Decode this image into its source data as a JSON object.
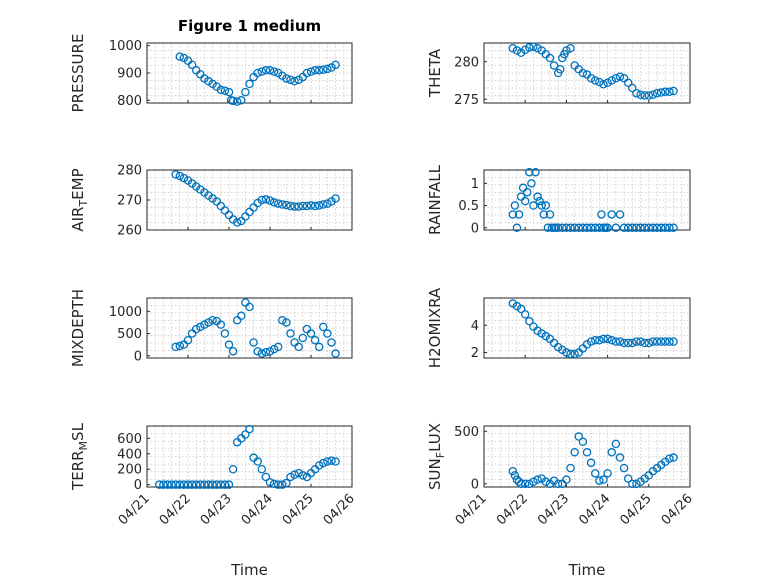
{
  "figure": {
    "title": "Figure 1 medium"
  },
  "colors": {
    "marker": "#0072BD",
    "axis": "#262626",
    "grid": "#c8c8c8"
  },
  "chart_data": [
    {
      "id": "pressure",
      "type": "scatter",
      "title": "Figure 1 medium",
      "ylabel_parts": [
        "PRESSURE"
      ],
      "xlabel": "",
      "xlim": [
        0,
        5
      ],
      "ylim": [
        790,
        1010
      ],
      "yticks": [
        800,
        900,
        1000
      ],
      "yticklabels": [
        "800",
        "900",
        "1000"
      ],
      "xticks": [
        0,
        1,
        2,
        3,
        4,
        5
      ],
      "xticklabels": [],
      "x": [
        0.8,
        0.9,
        1.0,
        1.1,
        1.2,
        1.3,
        1.4,
        1.5,
        1.6,
        1.7,
        1.8,
        1.9,
        2.0,
        2.05,
        2.1,
        2.2,
        2.3,
        2.4,
        2.5,
        2.6,
        2.7,
        2.8,
        2.9,
        3.0,
        3.1,
        3.2,
        3.3,
        3.4,
        3.5,
        3.6,
        3.7,
        3.8,
        3.9,
        4.0,
        4.1,
        4.2,
        4.3,
        4.4,
        4.5,
        4.6
      ],
      "y": [
        960,
        955,
        945,
        930,
        910,
        895,
        880,
        870,
        860,
        850,
        838,
        835,
        830,
        800,
        798,
        795,
        800,
        830,
        860,
        885,
        900,
        905,
        910,
        910,
        905,
        900,
        890,
        880,
        875,
        870,
        875,
        885,
        900,
        905,
        910,
        910,
        912,
        915,
        920,
        930
      ]
    },
    {
      "id": "theta",
      "type": "scatter",
      "ylabel_parts": [
        "THETA"
      ],
      "xlabel": "",
      "xlim": [
        0,
        5
      ],
      "ylim": [
        274.5,
        282.5
      ],
      "yticks": [
        275,
        280
      ],
      "yticklabels": [
        "275",
        "280"
      ],
      "xticks": [
        0,
        1,
        2,
        3,
        4,
        5
      ],
      "xticklabels": [],
      "x": [
        0.7,
        0.8,
        0.9,
        1.0,
        1.1,
        1.2,
        1.3,
        1.4,
        1.5,
        1.6,
        1.7,
        1.8,
        1.85,
        1.9,
        1.95,
        2.0,
        2.1,
        2.2,
        2.3,
        2.4,
        2.5,
        2.6,
        2.7,
        2.8,
        2.9,
        3.0,
        3.1,
        3.2,
        3.3,
        3.4,
        3.5,
        3.6,
        3.7,
        3.8,
        3.9,
        4.0,
        4.1,
        4.2,
        4.3,
        4.4,
        4.5,
        4.6
      ],
      "y": [
        281.8,
        281.5,
        281.2,
        281.6,
        281.9,
        282.0,
        281.8,
        281.5,
        281.0,
        280.5,
        279.5,
        278.5,
        279.0,
        280.5,
        281.0,
        281.5,
        281.8,
        279.5,
        279.0,
        278.5,
        278.3,
        277.8,
        277.5,
        277.3,
        277.0,
        277.2,
        277.5,
        277.8,
        278.0,
        277.8,
        277.2,
        276.5,
        275.8,
        275.6,
        275.5,
        275.5,
        275.6,
        275.8,
        275.9,
        276.0,
        276.0,
        276.1
      ]
    },
    {
      "id": "air_temp",
      "type": "scatter",
      "ylabel_parts": [
        "AIR",
        "T",
        "EMP"
      ],
      "xlabel": "",
      "xlim": [
        0,
        5
      ],
      "ylim": [
        260,
        280
      ],
      "yticks": [
        260,
        270,
        280
      ],
      "yticklabels": [
        "260",
        "270",
        "280"
      ],
      "xticks": [
        0,
        1,
        2,
        3,
        4,
        5
      ],
      "xticklabels": [],
      "x": [
        0.7,
        0.8,
        0.9,
        1.0,
        1.1,
        1.2,
        1.3,
        1.4,
        1.5,
        1.6,
        1.7,
        1.8,
        1.9,
        2.0,
        2.1,
        2.2,
        2.3,
        2.4,
        2.5,
        2.6,
        2.7,
        2.8,
        2.9,
        3.0,
        3.1,
        3.2,
        3.3,
        3.4,
        3.5,
        3.6,
        3.7,
        3.8,
        3.9,
        4.0,
        4.1,
        4.2,
        4.3,
        4.4,
        4.5,
        4.6
      ],
      "y": [
        278.5,
        278.0,
        277.3,
        276.5,
        275.5,
        274.5,
        273.5,
        272.5,
        271.5,
        270.5,
        269.5,
        268.0,
        266.5,
        265.0,
        263.5,
        262.5,
        263.0,
        264.5,
        266.0,
        267.5,
        269.0,
        270.0,
        270.2,
        269.8,
        269.2,
        268.8,
        268.5,
        268.3,
        268.0,
        267.8,
        267.8,
        268.0,
        268.0,
        268.2,
        268.0,
        268.2,
        268.5,
        268.8,
        269.5,
        270.5
      ]
    },
    {
      "id": "rainfall",
      "type": "scatter",
      "ylabel_parts": [
        "RAINFALL"
      ],
      "xlabel": "",
      "xlim": [
        0,
        5
      ],
      "ylim": [
        -0.05,
        1.3
      ],
      "yticks": [
        0,
        0.5,
        1
      ],
      "yticklabels": [
        "0",
        "0.5",
        "1"
      ],
      "xticks": [
        0,
        1,
        2,
        3,
        4,
        5
      ],
      "xticklabels": [],
      "x": [
        0.7,
        0.75,
        0.8,
        0.85,
        0.9,
        0.95,
        1.0,
        1.05,
        1.1,
        1.15,
        1.2,
        1.25,
        1.3,
        1.35,
        1.4,
        1.45,
        1.5,
        1.55,
        1.6,
        1.65,
        1.7,
        1.75,
        1.8,
        1.9,
        2.0,
        2.1,
        2.2,
        2.3,
        2.4,
        2.5,
        2.6,
        2.7,
        2.8,
        2.85,
        2.9,
        2.95,
        3.0,
        3.1,
        3.2,
        3.3,
        3.4,
        3.5,
        3.6,
        3.7,
        3.8,
        3.9,
        4.0,
        4.1,
        4.2,
        4.3,
        4.4,
        4.5,
        4.6
      ],
      "y": [
        0.3,
        0.5,
        0.0,
        0.3,
        0.7,
        0.9,
        0.6,
        0.8,
        1.25,
        1.0,
        0.5,
        1.25,
        0.7,
        0.6,
        0.5,
        0.3,
        0.5,
        0.0,
        0.3,
        0.0,
        0.0,
        0.0,
        0.0,
        0.0,
        0.0,
        0.0,
        0.0,
        0.0,
        0.0,
        0.0,
        0.0,
        0.0,
        0.0,
        0.3,
        0.0,
        0.0,
        0.0,
        0.3,
        0.0,
        0.3,
        0.0,
        0.0,
        0.0,
        0.0,
        0.0,
        0.0,
        0.0,
        0.0,
        0.0,
        0.0,
        0.0,
        0.0,
        0.0
      ]
    },
    {
      "id": "mixdepth",
      "type": "scatter",
      "ylabel_parts": [
        "MIXDEPTH"
      ],
      "xlabel": "",
      "xlim": [
        0,
        5
      ],
      "ylim": [
        -50,
        1300
      ],
      "yticks": [
        0,
        500,
        1000
      ],
      "yticklabels": [
        "0",
        "500",
        "1000"
      ],
      "xticks": [
        0,
        1,
        2,
        3,
        4,
        5
      ],
      "xticklabels": [],
      "x": [
        0.7,
        0.8,
        0.9,
        1.0,
        1.1,
        1.2,
        1.3,
        1.4,
        1.5,
        1.6,
        1.7,
        1.8,
        1.9,
        2.0,
        2.1,
        2.2,
        2.3,
        2.4,
        2.5,
        2.6,
        2.7,
        2.8,
        2.9,
        3.0,
        3.1,
        3.2,
        3.3,
        3.4,
        3.5,
        3.6,
        3.7,
        3.8,
        3.9,
        4.0,
        4.1,
        4.2,
        4.3,
        4.4,
        4.5,
        4.6
      ],
      "y": [
        200,
        220,
        250,
        350,
        500,
        600,
        650,
        700,
        750,
        800,
        780,
        700,
        500,
        250,
        100,
        800,
        900,
        1200,
        1100,
        300,
        100,
        50,
        80,
        100,
        150,
        200,
        800,
        750,
        500,
        300,
        200,
        400,
        600,
        500,
        350,
        200,
        650,
        500,
        300,
        50
      ]
    },
    {
      "id": "h2omixra",
      "type": "scatter",
      "ylabel_parts": [
        "H2OMIXRA"
      ],
      "xlabel": "",
      "xlim": [
        0,
        5
      ],
      "ylim": [
        1.6,
        6
      ],
      "yticks": [
        2,
        4
      ],
      "yticklabels": [
        "2",
        "4"
      ],
      "xticks": [
        0,
        1,
        2,
        3,
        4,
        5
      ],
      "xticklabels": [],
      "x": [
        0.7,
        0.8,
        0.9,
        1.0,
        1.1,
        1.2,
        1.3,
        1.4,
        1.5,
        1.6,
        1.7,
        1.8,
        1.9,
        2.0,
        2.1,
        2.2,
        2.3,
        2.4,
        2.5,
        2.6,
        2.7,
        2.8,
        2.9,
        3.0,
        3.1,
        3.2,
        3.3,
        3.4,
        3.5,
        3.6,
        3.7,
        3.8,
        3.9,
        4.0,
        4.1,
        4.2,
        4.3,
        4.4,
        4.5,
        4.6
      ],
      "y": [
        5.6,
        5.4,
        5.2,
        4.8,
        4.3,
        3.9,
        3.6,
        3.4,
        3.2,
        3.0,
        2.7,
        2.4,
        2.2,
        2.0,
        1.9,
        1.9,
        2.0,
        2.3,
        2.6,
        2.8,
        2.9,
        2.9,
        3.0,
        3.0,
        2.9,
        2.8,
        2.8,
        2.7,
        2.7,
        2.7,
        2.8,
        2.8,
        2.7,
        2.7,
        2.8,
        2.8,
        2.8,
        2.8,
        2.8,
        2.8
      ]
    },
    {
      "id": "terr_msl",
      "type": "scatter",
      "ylabel_parts": [
        "TERR",
        "M",
        "SL"
      ],
      "xlabel": "Time",
      "xlim": [
        0,
        5
      ],
      "ylim": [
        -30,
        760
      ],
      "yticks": [
        0,
        200,
        400,
        600
      ],
      "yticklabels": [
        "0",
        "200",
        "400",
        "600"
      ],
      "xticks": [
        0,
        1,
        2,
        3,
        4,
        5
      ],
      "xticklabels": [
        "04/21",
        "04/22",
        "04/23",
        "04/24",
        "04/25",
        "04/26"
      ],
      "x": [
        0.3,
        0.4,
        0.5,
        0.6,
        0.7,
        0.8,
        0.9,
        1.0,
        1.1,
        1.2,
        1.3,
        1.4,
        1.5,
        1.6,
        1.7,
        1.8,
        1.9,
        2.0,
        2.1,
        2.2,
        2.3,
        2.4,
        2.5,
        2.6,
        2.7,
        2.8,
        2.9,
        3.0,
        3.1,
        3.2,
        3.3,
        3.4,
        3.5,
        3.6,
        3.7,
        3.8,
        3.9,
        4.0,
        4.1,
        4.2,
        4.3,
        4.4,
        4.5,
        4.6
      ],
      "y": [
        0,
        0,
        0,
        0,
        0,
        0,
        0,
        0,
        0,
        0,
        0,
        0,
        0,
        0,
        0,
        0,
        0,
        0,
        200,
        550,
        600,
        650,
        720,
        350,
        300,
        200,
        100,
        30,
        10,
        0,
        0,
        20,
        100,
        130,
        150,
        120,
        100,
        150,
        200,
        250,
        280,
        300,
        310,
        300
      ]
    },
    {
      "id": "sun_flux",
      "type": "scatter",
      "ylabel_parts": [
        "SUN",
        "F",
        "LUX"
      ],
      "xlabel": "Time",
      "xlim": [
        0,
        5
      ],
      "ylim": [
        -30,
        550
      ],
      "yticks": [
        0,
        500
      ],
      "yticklabels": [
        "0",
        "500"
      ],
      "xticks": [
        0,
        1,
        2,
        3,
        4,
        5
      ],
      "xticklabels": [
        "04/21",
        "04/22",
        "04/23",
        "04/24",
        "04/25",
        "04/26"
      ],
      "x": [
        0.7,
        0.75,
        0.8,
        0.85,
        0.9,
        1.0,
        1.1,
        1.2,
        1.3,
        1.4,
        1.5,
        1.6,
        1.7,
        1.8,
        1.9,
        2.0,
        2.1,
        2.2,
        2.3,
        2.4,
        2.5,
        2.6,
        2.7,
        2.8,
        2.9,
        3.0,
        3.1,
        3.2,
        3.3,
        3.4,
        3.5,
        3.6,
        3.7,
        3.8,
        3.9,
        4.0,
        4.1,
        4.2,
        4.3,
        4.4,
        4.5,
        4.6
      ],
      "y": [
        120,
        80,
        40,
        20,
        0,
        0,
        0,
        20,
        40,
        50,
        20,
        0,
        30,
        0,
        0,
        40,
        150,
        300,
        450,
        400,
        300,
        200,
        100,
        30,
        40,
        100,
        300,
        380,
        250,
        150,
        50,
        0,
        0,
        20,
        50,
        80,
        120,
        150,
        180,
        210,
        240,
        250
      ]
    }
  ]
}
